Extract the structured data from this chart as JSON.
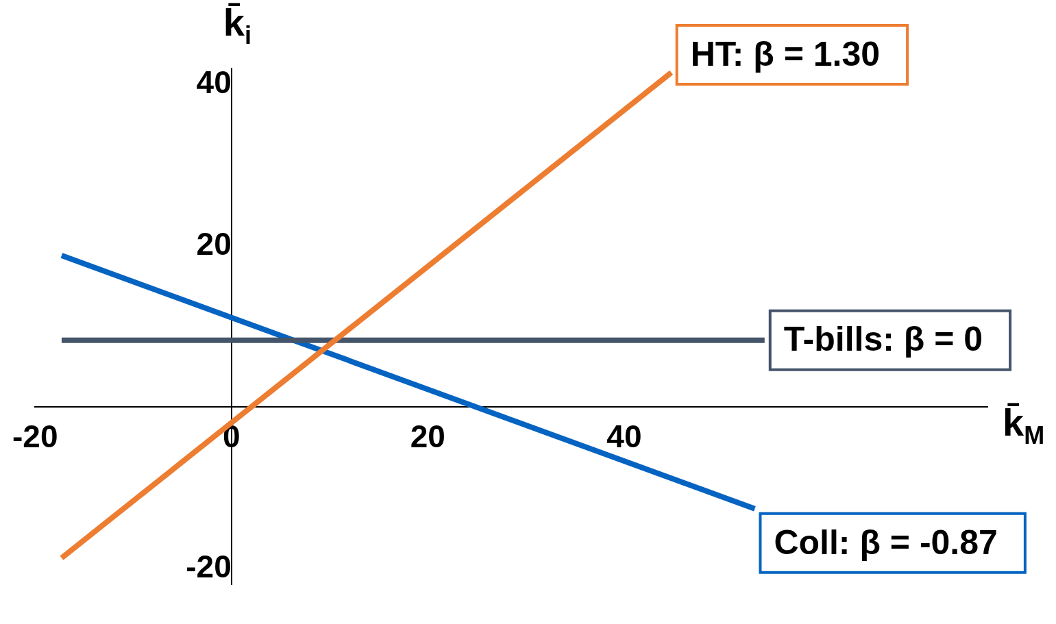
{
  "chart_data": {
    "type": "line",
    "xlabel": "k̄$_{M}$",
    "ylabel": "k̄$_{i}$",
    "xlim": [
      -20,
      77
    ],
    "ylim": [
      -22,
      42
    ],
    "xticks": [
      -20,
      0,
      20,
      40
    ],
    "yticks": [
      -20,
      20,
      40
    ],
    "grid": false,
    "legend": false,
    "marker": "none",
    "line_style": "solid",
    "series": [
      {
        "name": "HT: β = 1.30",
        "color": "#ed7d31",
        "x": [
          -17.3,
          44.8
        ],
        "values": [
          -18.7,
          41.5
        ]
      },
      {
        "name": "T-bills: β = 0",
        "color": "#44546a",
        "x": [
          -17.3,
          54.3
        ],
        "values": [
          8.3,
          8.3
        ]
      },
      {
        "name": "Coll: β = -0.87",
        "color": "#0563c1",
        "x": [
          -17.3,
          53.3
        ],
        "values": [
          18.8,
          -12.6
        ]
      }
    ]
  }
}
